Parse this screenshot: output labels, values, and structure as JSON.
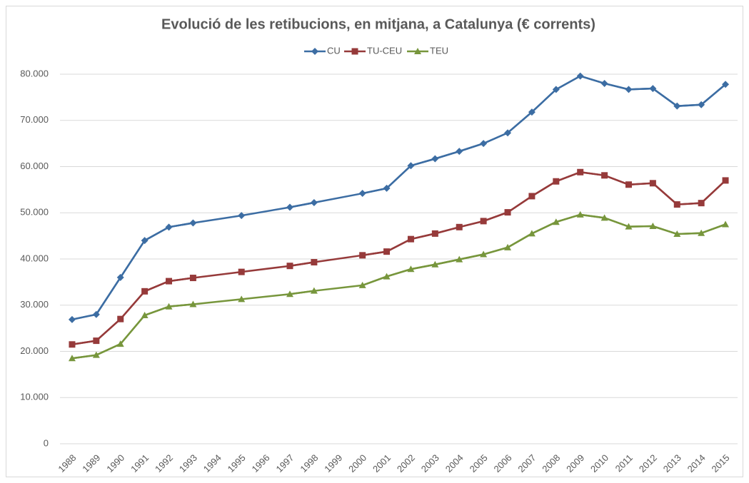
{
  "chart_data": {
    "type": "line",
    "title": "Evolució de les retibucions, en mitjana,  a Catalunya (€ corrents)",
    "categories": [
      "1988",
      "1989",
      "1990",
      "1991",
      "1992",
      "1993",
      "1994",
      "1995",
      "1996",
      "1997",
      "1998",
      "1999",
      "2000",
      "2001",
      "2002",
      "2003",
      "2004",
      "2005",
      "2006",
      "2007",
      "2008",
      "2009",
      "2010",
      "2011",
      "2012",
      "2013",
      "2014",
      "2015"
    ],
    "series": [
      {
        "name": "CU",
        "color": "#3c6da3",
        "marker": "diamond",
        "values": [
          26900,
          28000,
          36000,
          44000,
          46900,
          47800,
          null,
          49400,
          null,
          51200,
          52200,
          null,
          54200,
          55300,
          60200,
          61700,
          63300,
          65000,
          67300,
          71800,
          76700,
          79600,
          78000,
          76700,
          76900,
          73100,
          73400,
          77800
        ]
      },
      {
        "name": "TU-CEU",
        "color": "#963a3a",
        "marker": "square",
        "values": [
          21500,
          22300,
          27000,
          33000,
          35200,
          35900,
          null,
          37200,
          null,
          38500,
          39300,
          null,
          40800,
          41600,
          44300,
          45500,
          46900,
          48200,
          50100,
          53600,
          56800,
          58800,
          58100,
          56100,
          56400,
          51800,
          52100,
          57000
        ]
      },
      {
        "name": "TEU",
        "color": "#77963c",
        "marker": "triangle",
        "values": [
          18500,
          19200,
          21600,
          27800,
          29700,
          30200,
          null,
          31300,
          null,
          32400,
          33100,
          null,
          34300,
          36200,
          37800,
          38800,
          39900,
          41000,
          42500,
          45500,
          48000,
          49600,
          48900,
          47000,
          47100,
          45400,
          45600,
          47500
        ]
      }
    ],
    "ylim": [
      0,
      80000
    ],
    "yticks": [
      0,
      {
        "value": 10000,
        "label": "10.000"
      },
      {
        "value": 20000,
        "label": "20.000"
      },
      {
        "value": 30000,
        "label": "30.000"
      },
      {
        "value": 40000,
        "label": "40.000"
      },
      {
        "value": 50000,
        "label": "50.000"
      },
      {
        "value": 60000,
        "label": "60.000"
      },
      {
        "value": 70000,
        "label": "70.000"
      },
      {
        "value": 80000,
        "label": "80.000"
      }
    ],
    "grid": true,
    "legend": "top"
  }
}
